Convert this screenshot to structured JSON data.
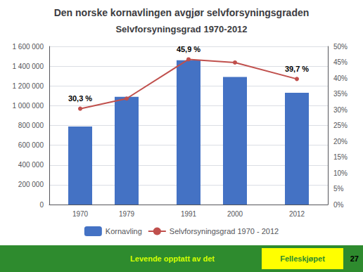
{
  "chart_data": {
    "type": "bar",
    "title": "Den norske kornavlingen avgjør selvforsyningsgraden",
    "subtitle": "Selvforsyningsgrad 1970-2012",
    "x": [
      1970,
      1979,
      1991,
      2000,
      2012
    ],
    "xlim": [
      1964,
      2018
    ],
    "xticks": [
      1970,
      1979,
      1991,
      2000,
      2012
    ],
    "series": [
      {
        "name": "Kornavling",
        "type": "bar",
        "color": "#4472C4",
        "values": [
          790000,
          1090000,
          1460000,
          1290000,
          1130000
        ]
      },
      {
        "name": "Selvforsyningsgrad 1970 - 2012",
        "type": "line",
        "color": "#C0504D",
        "axis": "y2",
        "marker": "circle",
        "values": [
          0.303,
          0.335,
          0.459,
          0.449,
          0.397
        ]
      }
    ],
    "ylim": [
      0,
      1600000
    ],
    "yticks": [
      0,
      {
        "value": 200000,
        "label": "200 000"
      },
      {
        "value": 400000,
        "label": "400 000"
      },
      {
        "value": 600000,
        "label": "600 000"
      },
      {
        "value": 800000,
        "label": "800 000"
      },
      {
        "value": 1000000,
        "label": "1 000 000"
      },
      {
        "value": 1200000,
        "label": "1 200 000"
      },
      {
        "value": 1400000,
        "label": "1 400 000"
      },
      {
        "value": 1600000,
        "label": "1 600 000"
      }
    ],
    "y2lim": [
      0.0,
      0.5
    ],
    "y2ticks": [
      {
        "value": 0.0,
        "label": "0%"
      },
      {
        "value": 0.05,
        "label": "5%"
      },
      {
        "value": 0.1,
        "label": "10%"
      },
      {
        "value": 0.15,
        "label": "15%"
      },
      {
        "value": 0.2,
        "label": "20%"
      },
      {
        "value": 0.25,
        "label": "25%"
      },
      {
        "value": 0.3,
        "label": "30%"
      },
      {
        "value": 0.35,
        "label": "35%"
      },
      {
        "value": 0.4,
        "label": "40%"
      },
      {
        "value": 0.45,
        "label": "45%"
      },
      {
        "value": 0.5,
        "label": "50%"
      }
    ],
    "grid": true,
    "legend": "bottom",
    "annotations": [
      {
        "x": 1970,
        "y": 0.303,
        "text": "30,3 %"
      },
      {
        "x": 1991,
        "y": 0.459,
        "text": "45,9 %"
      },
      {
        "x": 2012,
        "y": 0.397,
        "text": "39,7 %"
      },
      {
        "text": "Levende opptatt av det"
      },
      {
        "text": "Felleskjøpet"
      },
      {
        "text": "27"
      }
    ]
  }
}
